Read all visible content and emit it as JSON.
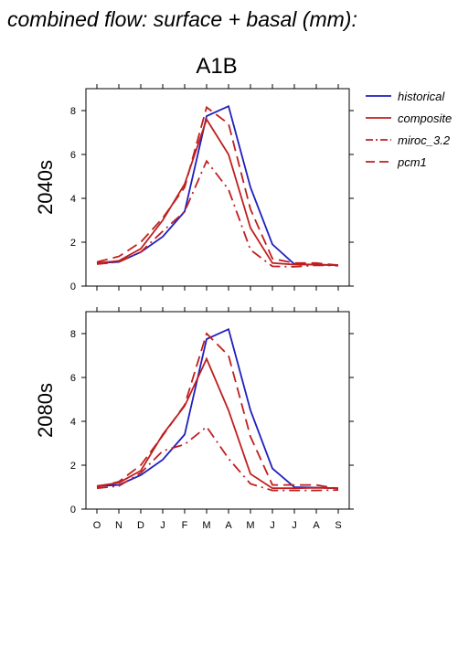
{
  "title": "combined flow: surface + basal (mm):",
  "scenario": "A1B",
  "chart_data": {
    "type": "line",
    "categories": [
      "O",
      "N",
      "D",
      "J",
      "F",
      "M",
      "A",
      "M",
      "J",
      "J",
      "A",
      "S"
    ],
    "ylim": [
      0,
      9
    ],
    "yticks": [
      0,
      2,
      4,
      6,
      8
    ],
    "legend_position": "right",
    "legend": [
      {
        "name": "historical",
        "color": "#1f1fbf",
        "dash": "solid"
      },
      {
        "name": "composite",
        "color": "#bf1f1f",
        "dash": "solid"
      },
      {
        "name": "miroc_3.2",
        "color": "#bf1f1f",
        "dash": "dashdot"
      },
      {
        "name": "pcm1",
        "color": "#bf1f1f",
        "dash": "dash"
      }
    ],
    "panels": [
      {
        "label": "2040s",
        "series": [
          {
            "name": "historical",
            "values": [
              1.05,
              1.1,
              1.55,
              2.25,
              3.4,
              7.75,
              8.2,
              4.5,
              1.9,
              1.0,
              0.98,
              0.95
            ]
          },
          {
            "name": "composite",
            "values": [
              1.05,
              1.15,
              1.7,
              3.0,
              4.65,
              7.6,
              6.0,
              2.65,
              1.05,
              0.98,
              0.98,
              0.95
            ]
          },
          {
            "name": "miroc_3.2",
            "values": [
              1.0,
              1.1,
              1.55,
              2.5,
              3.4,
              5.7,
              4.4,
              1.65,
              0.9,
              0.88,
              0.95,
              0.93
            ]
          },
          {
            "name": "pcm1",
            "values": [
              1.1,
              1.35,
              2.0,
              3.1,
              4.5,
              8.15,
              7.4,
              3.5,
              1.25,
              1.05,
              1.05,
              0.95
            ]
          }
        ]
      },
      {
        "label": "2080s",
        "series": [
          {
            "name": "historical",
            "values": [
              1.05,
              1.1,
              1.55,
              2.25,
              3.4,
              7.75,
              8.2,
              4.5,
              1.85,
              1.0,
              0.98,
              0.95
            ]
          },
          {
            "name": "composite",
            "values": [
              1.05,
              1.2,
              1.75,
              3.4,
              4.7,
              6.85,
              4.5,
              1.6,
              0.95,
              0.95,
              0.97,
              0.95
            ]
          },
          {
            "name": "miroc_3.2",
            "values": [
              0.95,
              1.05,
              1.65,
              2.65,
              2.95,
              3.75,
              2.3,
              1.15,
              0.85,
              0.85,
              0.85,
              0.87
            ]
          },
          {
            "name": "pcm1",
            "values": [
              1.0,
              1.25,
              2.0,
              3.35,
              4.75,
              8.0,
              7.0,
              3.3,
              1.1,
              1.1,
              1.1,
              0.93
            ]
          }
        ]
      }
    ]
  }
}
